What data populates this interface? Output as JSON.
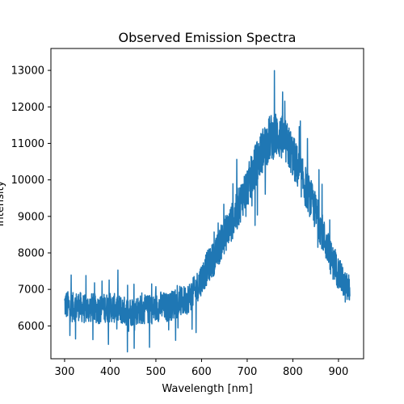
{
  "chart_data": {
    "type": "line",
    "title": "Observed Emission Spectra",
    "xlabel": "Wavelength [nm]",
    "ylabel": "Intensity",
    "xlim": [
      270,
      955
    ],
    "ylim": [
      5100,
      13600
    ],
    "xticks": [
      300,
      400,
      500,
      600,
      700,
      800,
      900
    ],
    "yticks": [
      6000,
      7000,
      8000,
      9000,
      10000,
      11000,
      12000,
      13000
    ],
    "grid": false,
    "line_color": "#1f77b4",
    "series": [
      {
        "x": [
          300,
          315,
          330,
          345,
          360,
          375,
          390,
          405,
          420,
          435,
          450,
          465,
          480,
          495,
          510,
          525,
          540,
          555,
          570,
          585,
          600,
          615,
          630,
          645,
          660,
          675,
          690,
          705,
          720,
          735,
          750,
          765,
          780,
          795,
          810,
          825,
          840,
          855,
          870,
          885,
          900,
          915,
          925
        ],
        "y": [
          6600,
          6500,
          6550,
          6450,
          6500,
          6450,
          6500,
          6500,
          6450,
          6400,
          6400,
          6450,
          6450,
          6450,
          6550,
          6500,
          6600,
          6650,
          6750,
          6950,
          7300,
          7650,
          7900,
          8350,
          8700,
          9050,
          9550,
          9950,
          10450,
          10850,
          11150,
          11250,
          11100,
          10800,
          10350,
          9900,
          9450,
          8950,
          8350,
          7800,
          7450,
          7050,
          7000
        ]
      }
    ]
  }
}
